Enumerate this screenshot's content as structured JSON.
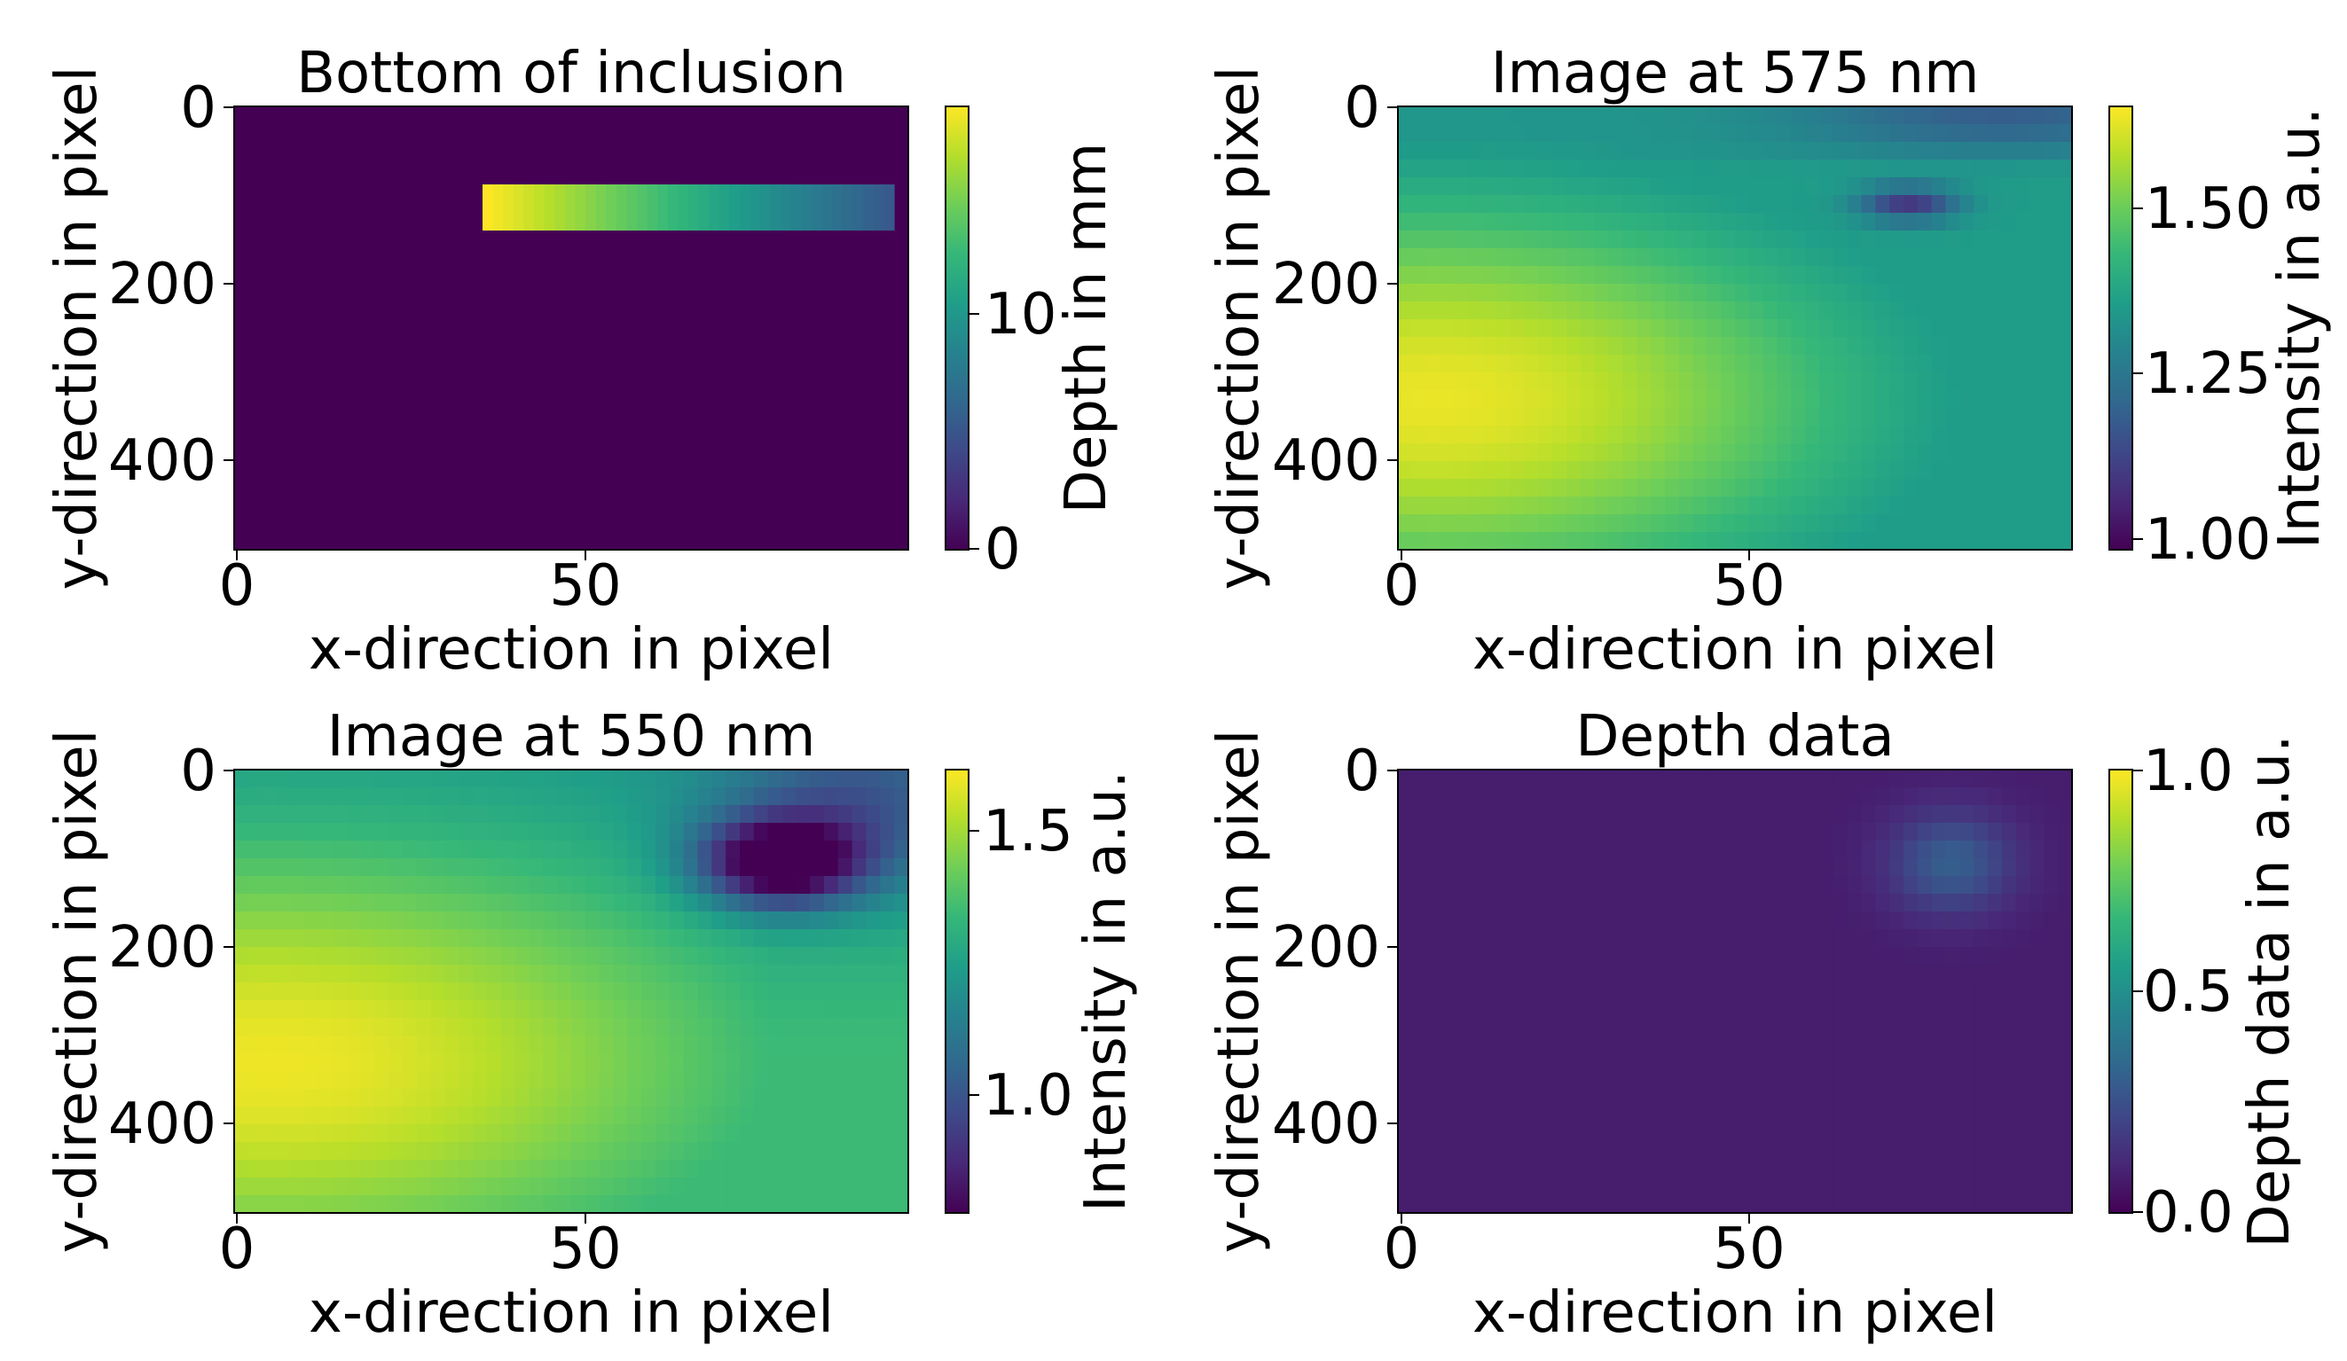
{
  "colors": {
    "viridis": [
      "#440154",
      "#482878",
      "#3e4989",
      "#31688e",
      "#26828e",
      "#1f9e89",
      "#35b779",
      "#6ece58",
      "#b5de2b",
      "#fde725"
    ],
    "axis": "#000000",
    "background": "#ffffff"
  },
  "chart_data": [
    {
      "type": "heatmap",
      "title": "Bottom of inclusion",
      "xlabel": "x-direction in pixel",
      "ylabel": "y-direction in pixel",
      "xlim": [
        0,
        95
      ],
      "ylim": [
        500,
        0
      ],
      "x_ticks": [
        "0",
        "50"
      ],
      "y_ticks": [
        "0",
        "200",
        "400"
      ],
      "colorbar": {
        "label": "Depth in mm",
        "range": [
          0,
          18
        ],
        "ticks": [
          "0",
          "10"
        ]
      },
      "baseline_value": 0,
      "regions": [
        {
          "name": "inclusion",
          "x_range": [
            35,
            93
          ],
          "y_range": [
            88,
            140
          ],
          "value_at_x_start": 18,
          "value_at_x_end": 5
        }
      ]
    },
    {
      "type": "heatmap",
      "title": "Image at 575 nm",
      "xlabel": "x-direction in pixel",
      "ylabel": "y-direction in pixel",
      "xlim": [
        0,
        95
      ],
      "ylim": [
        500,
        0
      ],
      "x_ticks": [
        "0",
        "50"
      ],
      "y_ticks": [
        "0",
        "200",
        "400"
      ],
      "colorbar": {
        "label": "Intensity in a.u.",
        "range": [
          0.98,
          1.65
        ],
        "ticks": [
          "1.00",
          "1.25",
          "1.50"
        ]
      },
      "description_values": {
        "max_at": [
          5,
          330
        ],
        "max_value": 1.63,
        "min_at": [
          72,
          110
        ],
        "min_value": 1.05,
        "typical_right": 1.35,
        "top_edge": 1.25
      }
    },
    {
      "type": "heatmap",
      "title": "Image at 550 nm",
      "xlabel": "x-direction in pixel",
      "ylabel": "y-direction in pixel",
      "xlim": [
        0,
        95
      ],
      "ylim": [
        500,
        0
      ],
      "x_ticks": [
        "0",
        "50"
      ],
      "y_ticks": [
        "0",
        "200",
        "400"
      ],
      "colorbar": {
        "label": "Intensity in a.u.",
        "range": [
          0.78,
          1.62
        ],
        "ticks": [
          "1.0",
          "1.5"
        ]
      },
      "description_values": {
        "max_at": [
          5,
          330
        ],
        "max_value": 1.6,
        "min_at": [
          77,
          105
        ],
        "min_value": 0.8,
        "typical_right": 1.35,
        "top_edge": 1.2
      }
    },
    {
      "type": "heatmap",
      "title": "Depth data",
      "xlabel": "x-direction in pixel",
      "ylabel": "y-direction in pixel",
      "xlim": [
        0,
        95
      ],
      "ylim": [
        500,
        0
      ],
      "x_ticks": [
        "0",
        "50"
      ],
      "y_ticks": [
        "0",
        "200",
        "400"
      ],
      "colorbar": {
        "label": "Depth data in a.u.",
        "range": [
          0.0,
          1.0
        ],
        "ticks": [
          "0.0",
          "0.5",
          "1.0"
        ]
      },
      "description_values": {
        "background": 0.08,
        "peak_at": [
          78,
          105
        ],
        "peak_value": 0.3
      }
    }
  ]
}
